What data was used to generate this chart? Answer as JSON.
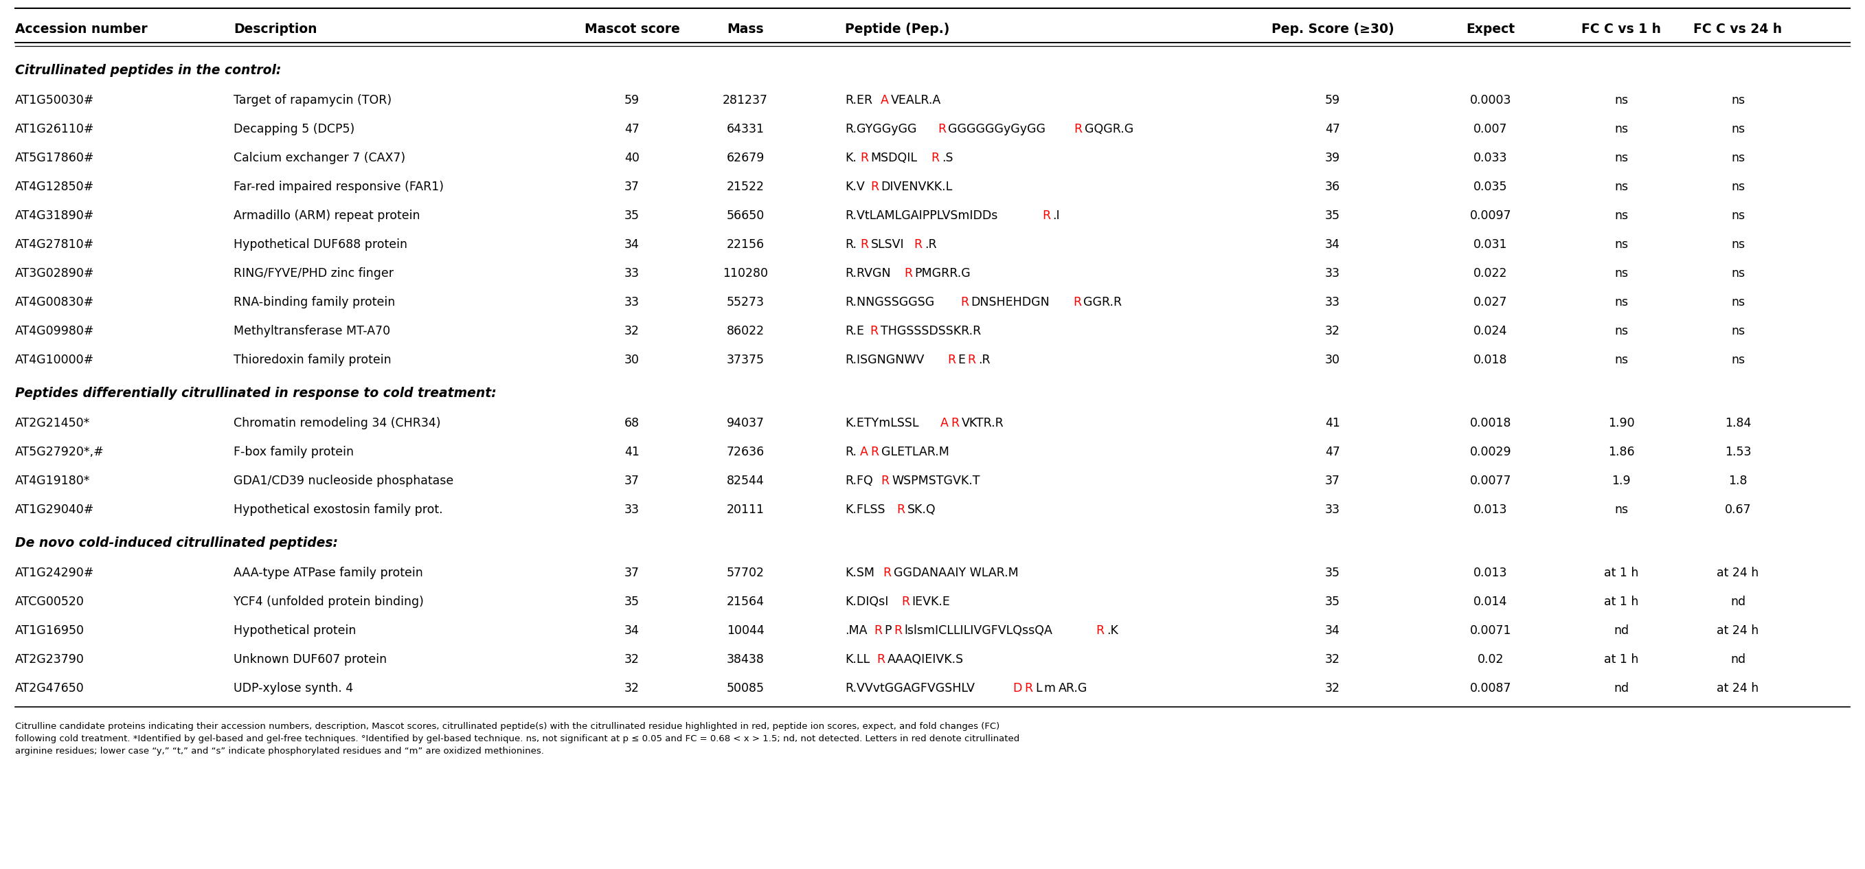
{
  "headers": [
    "Accession number",
    "Description",
    "Mascot score",
    "Mass",
    "Peptide (Pep.)",
    "Pep. Score (≥30)",
    "Expect",
    "FC C vs 1 h",
    "FC C vs 24 h"
  ],
  "section1_label": "Citrullinated peptides in the control:",
  "section2_label": "Peptides differentially citrullinated in response to cold treatment:",
  "section3_label": "De novo cold-induced citrullinated peptides:",
  "rows": [
    {
      "acc": "AT1G50030°",
      "desc": "Target of rapamycin (TOR)",
      "mascot": "59",
      "mass": "281237",
      "peptide_parts": [
        [
          "R.ER",
          "black"
        ],
        [
          "A",
          "red"
        ],
        [
          "VEALR.A",
          "black"
        ]
      ],
      "pep_score": "59",
      "expect": "0.0003",
      "fc1": "ns",
      "fc24": "ns",
      "section": 1
    },
    {
      "acc": "AT1G26110°",
      "desc": "Decapping 5 (DCP5)",
      "mascot": "47",
      "mass": "64331",
      "peptide_parts": [
        [
          "R.GYGGyGG",
          "black"
        ],
        [
          "R",
          "red"
        ],
        [
          "GGGGGGyGyGG",
          "black"
        ],
        [
          "R",
          "red"
        ],
        [
          "GQGR.G",
          "black"
        ]
      ],
      "pep_score": "47",
      "expect": "0.007",
      "fc1": "ns",
      "fc24": "ns",
      "section": 1
    },
    {
      "acc": "AT5G17860°",
      "desc": "Calcium exchanger 7 (CAX7)",
      "mascot": "40",
      "mass": "62679",
      "peptide_parts": [
        [
          "K.",
          "black"
        ],
        [
          "R",
          "red"
        ],
        [
          "MSDQIL",
          "black"
        ],
        [
          "R",
          "red"
        ],
        [
          ".S",
          "black"
        ]
      ],
      "pep_score": "39",
      "expect": "0.033",
      "fc1": "ns",
      "fc24": "ns",
      "section": 1
    },
    {
      "acc": "AT4G12850°",
      "desc": "Far-red impaired responsive (FAR1)",
      "mascot": "37",
      "mass": "21522",
      "peptide_parts": [
        [
          "K.V",
          "black"
        ],
        [
          "R",
          "red"
        ],
        [
          "DIVENVKK.L",
          "black"
        ]
      ],
      "pep_score": "36",
      "expect": "0.035",
      "fc1": "ns",
      "fc24": "ns",
      "section": 1
    },
    {
      "acc": "AT4G31890°",
      "desc": "Armadillo (ARM) repeat protein",
      "mascot": "35",
      "mass": "56650",
      "peptide_parts": [
        [
          "R.VtLAMLGAIPPLVSmIDDs",
          "black"
        ],
        [
          "R",
          "red"
        ],
        [
          ".I",
          "black"
        ]
      ],
      "pep_score": "35",
      "expect": "0.0097",
      "fc1": "ns",
      "fc24": "ns",
      "section": 1
    },
    {
      "acc": "AT4G27810°",
      "desc": "Hypothetical DUF688 protein",
      "mascot": "34",
      "mass": "22156",
      "peptide_parts": [
        [
          "R.",
          "black"
        ],
        [
          "R",
          "red"
        ],
        [
          "SLSVI",
          "black"
        ],
        [
          "R",
          "red"
        ],
        [
          ".R",
          "black"
        ]
      ],
      "pep_score": "34",
      "expect": "0.031",
      "fc1": "ns",
      "fc24": "ns",
      "section": 1
    },
    {
      "acc": "AT3G02890°",
      "desc": "RING/FYVE/PHD zinc finger",
      "mascot": "33",
      "mass": "110280",
      "peptide_parts": [
        [
          "R.RVGN",
          "black"
        ],
        [
          "R",
          "red"
        ],
        [
          "PMGRR.G",
          "black"
        ]
      ],
      "pep_score": "33",
      "expect": "0.022",
      "fc1": "ns",
      "fc24": "ns",
      "section": 1
    },
    {
      "acc": "AT4G00830°",
      "desc": "RNA-binding family protein",
      "mascot": "33",
      "mass": "55273",
      "peptide_parts": [
        [
          "R.NNGSSGGSG",
          "black"
        ],
        [
          "R",
          "red"
        ],
        [
          "DNSHEHDGN",
          "black"
        ],
        [
          "R",
          "red"
        ],
        [
          "GGR.R",
          "black"
        ]
      ],
      "pep_score": "33",
      "expect": "0.027",
      "fc1": "ns",
      "fc24": "ns",
      "section": 1
    },
    {
      "acc": "AT4G09980°",
      "desc": "Methyltransferase MT-A70",
      "mascot": "32",
      "mass": "86022",
      "peptide_parts": [
        [
          "R.E",
          "black"
        ],
        [
          "R",
          "red"
        ],
        [
          "THGSSSDSSKR.R",
          "black"
        ]
      ],
      "pep_score": "32",
      "expect": "0.024",
      "fc1": "ns",
      "fc24": "ns",
      "section": 1
    },
    {
      "acc": "AT4G10000°",
      "desc": "Thioredoxin family protein",
      "mascot": "30",
      "mass": "37375",
      "peptide_parts": [
        [
          "R.ISGNGNWV",
          "black"
        ],
        [
          "R",
          "red"
        ],
        [
          "E",
          "black"
        ],
        [
          "R",
          "red"
        ],
        [
          ".R",
          "black"
        ]
      ],
      "pep_score": "30",
      "expect": "0.018",
      "fc1": "ns",
      "fc24": "ns",
      "section": 1
    },
    {
      "acc": "AT2G21450*",
      "desc": "Chromatin remodeling 34 (CHR34)",
      "mascot": "68",
      "mass": "94037",
      "peptide_parts": [
        [
          "K.ETYmLSSL",
          "black"
        ],
        [
          "A",
          "red"
        ],
        [
          "R",
          "red"
        ],
        [
          "VKTR.R",
          "black"
        ]
      ],
      "pep_score": "41",
      "expect": "0.0018",
      "fc1": "1.90",
      "fc24": "1.84",
      "section": 2
    },
    {
      "acc": "AT5G27920*,°",
      "desc": "F-box family protein",
      "mascot": "41",
      "mass": "72636",
      "peptide_parts": [
        [
          "R.",
          "black"
        ],
        [
          "A",
          "red"
        ],
        [
          "R",
          "red"
        ],
        [
          "GLETLAR.M",
          "black"
        ]
      ],
      "pep_score": "47",
      "expect": "0.0029",
      "fc1": "1.86",
      "fc24": "1.53",
      "section": 2
    },
    {
      "acc": "AT4G19180*",
      "desc": "GDA1/CD39 nucleoside phosphatase",
      "mascot": "37",
      "mass": "82544",
      "peptide_parts": [
        [
          "R.FQ",
          "black"
        ],
        [
          "R",
          "red"
        ],
        [
          "WSPMSTGVK.T",
          "black"
        ]
      ],
      "pep_score": "37",
      "expect": "0.0077",
      "fc1": "1.9",
      "fc24": "1.8",
      "section": 2
    },
    {
      "acc": "AT1G29040°",
      "desc": "Hypothetical exostosin family prot.",
      "mascot": "33",
      "mass": "20111",
      "peptide_parts": [
        [
          "K.FLSS",
          "black"
        ],
        [
          "R",
          "red"
        ],
        [
          "SK.Q",
          "black"
        ]
      ],
      "pep_score": "33",
      "expect": "0.013",
      "fc1": "ns",
      "fc24": "0.67",
      "section": 2
    },
    {
      "acc": "AT1G24290°",
      "desc": "AAA-type ATPase family protein",
      "mascot": "37",
      "mass": "57702",
      "peptide_parts": [
        [
          "K.SM",
          "black"
        ],
        [
          "R",
          "red"
        ],
        [
          "GGDANAAIY WLAR.M",
          "black"
        ]
      ],
      "pep_score": "35",
      "expect": "0.013",
      "fc1": "at 1 h",
      "fc24": "at 24 h",
      "section": 3
    },
    {
      "acc": "ATCG00520",
      "desc": "YCF4 (unfolded protein binding)",
      "mascot": "35",
      "mass": "21564",
      "peptide_parts": [
        [
          "K.DIQsI",
          "black"
        ],
        [
          "R",
          "red"
        ],
        [
          "IEVK.E",
          "black"
        ]
      ],
      "pep_score": "35",
      "expect": "0.014",
      "fc1": "at 1 h",
      "fc24": "nd",
      "section": 3
    },
    {
      "acc": "AT1G16950",
      "desc": "Hypothetical protein",
      "mascot": "34",
      "mass": "10044",
      "peptide_parts": [
        [
          ".MA",
          "black"
        ],
        [
          "R",
          "red"
        ],
        [
          "P",
          "black"
        ],
        [
          "R",
          "red"
        ],
        [
          "lslsmICLLILIVGFVLQssQA",
          "black"
        ],
        [
          "R",
          "red"
        ],
        [
          ".K",
          "black"
        ]
      ],
      "pep_score": "34",
      "expect": "0.0071",
      "fc1": "nd",
      "fc24": "at 24 h",
      "section": 3
    },
    {
      "acc": "AT2G23790",
      "desc": "Unknown DUF607 protein",
      "mascot": "32",
      "mass": "38438",
      "peptide_parts": [
        [
          "K.LL",
          "black"
        ],
        [
          "R",
          "red"
        ],
        [
          "AAAQIEIVK.S",
          "black"
        ]
      ],
      "pep_score": "32",
      "expect": "0.02",
      "fc1": "at 1 h",
      "fc24": "nd",
      "section": 3
    },
    {
      "acc": "AT2G47650",
      "desc": "UDP-xylose synth. 4",
      "mascot": "32",
      "mass": "50085",
      "peptide_parts": [
        [
          "R.VVvtGGAGFVGSHLV",
          "black"
        ],
        [
          "D",
          "red"
        ],
        [
          "R",
          "red"
        ],
        [
          "L",
          "black"
        ],
        [
          "m",
          "black"
        ],
        [
          "AR.G",
          "black"
        ]
      ],
      "pep_score": "32",
      "expect": "0.0087",
      "fc1": "nd",
      "fc24": "at 24 h",
      "section": 3
    }
  ],
  "footnote_lines": [
    "Citrulline candidate proteins indicating their accession numbers, description, Mascot scores, citrullinated peptide(s) with the citrullinated residue highlighted in red, peptide ion scores, expect, and fold changes (FC)",
    "following cold treatment. *Identified by gel-based and gel-free techniques. °Identified by gel-based technique. ns, not significant at p ≤ 0.05 and FC = 0.68 < x > 1.5; nd, not detected. Letters in red denote citrullinated",
    "arginine residues; lower case “y,” “t,” and “s” indicate phosphorylated residues and “m” are oxidized methionines."
  ],
  "background_color": "#ffffff",
  "text_color": "#000000",
  "red_color": "#cc0000"
}
